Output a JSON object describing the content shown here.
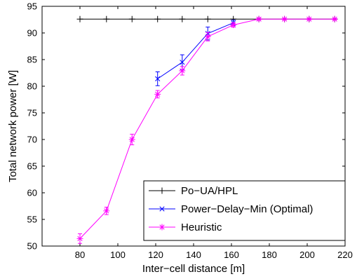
{
  "chart_data": {
    "type": "line",
    "xlabel": "Inter−cell distance [m]",
    "ylabel": "Total network power [W]",
    "xlim": [
      60,
      220
    ],
    "ylim": [
      50,
      95
    ],
    "xticks": [
      80,
      100,
      120,
      140,
      160,
      180,
      200,
      220
    ],
    "yticks": [
      50,
      55,
      60,
      65,
      70,
      75,
      80,
      85,
      90,
      95
    ],
    "grid": false,
    "legend_position": "bottom-right",
    "series": [
      {
        "name": "Po−UA/HPL",
        "color": "#000000",
        "marker": "plus",
        "x": [
          80,
          94,
          107.5,
          121,
          134,
          147.5,
          161,
          174.5,
          188,
          201,
          214.5
        ],
        "y": [
          92.6,
          92.6,
          92.6,
          92.6,
          92.6,
          92.6,
          92.6,
          92.6,
          92.6,
          92.6,
          92.6
        ]
      },
      {
        "name": "Power−Delay−Min (Optimal)",
        "color": "#0000ff",
        "marker": "x",
        "x": [
          121,
          134,
          147.5,
          161
        ],
        "y": [
          81.4,
          84.5,
          89.9,
          91.9
        ],
        "err": [
          1.3,
          1.4,
          1.2,
          0.5
        ]
      },
      {
        "name": "Heuristic",
        "color": "#ff00ff",
        "marker": "star",
        "x": [
          80,
          94,
          107.5,
          121,
          134,
          147.5,
          161,
          174.5,
          188,
          201,
          214.5
        ],
        "y": [
          51.4,
          56.6,
          70.0,
          78.5,
          82.9,
          89.3,
          91.5,
          92.6,
          92.6,
          92.6,
          92.6
        ],
        "err": [
          0.9,
          0.7,
          1.0,
          0.7,
          0.8,
          0.8,
          0.4,
          0.2,
          0.1,
          0.1,
          0.1
        ]
      }
    ]
  }
}
